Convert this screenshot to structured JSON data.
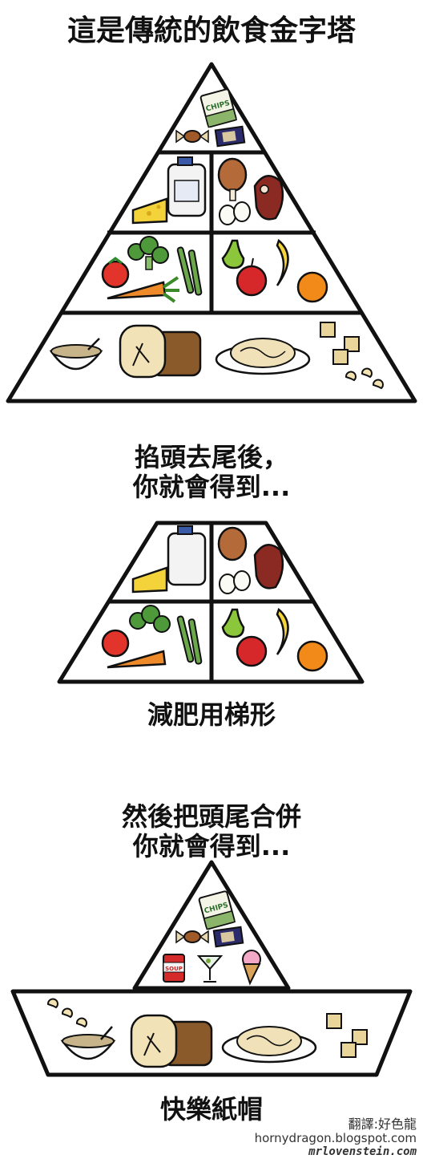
{
  "panel1": {
    "title": "這是傳統的飲食金字塔"
  },
  "panel2": {
    "title_line1": "掐頭去尾後，",
    "title_line2": "你就會得到...",
    "caption": "減肥用梯形"
  },
  "panel3": {
    "title_line1": "然後把頭尾合併",
    "title_line2": "你就會得到...",
    "caption": "快樂紙帽"
  },
  "food_labels": {
    "chips": "CHIPS",
    "soup": "SOUP"
  },
  "credits": {
    "translator": "翻譯:好色龍",
    "blog": "hornydragon.blogspot.com",
    "site": "mrlovenstein.com"
  }
}
